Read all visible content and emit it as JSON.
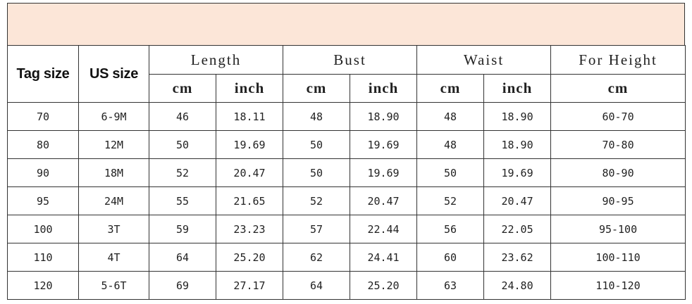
{
  "headers": {
    "tag_size": "Tag size",
    "us_size": "US size",
    "groups": [
      "Length",
      "Bust",
      "Waist",
      "For Height"
    ],
    "units": [
      "cm",
      "inch",
      "cm",
      "inch",
      "cm",
      "inch",
      "cm"
    ]
  },
  "colors": {
    "banner": "#fce6d8",
    "border": "#333333"
  },
  "rows": [
    [
      "70",
      "6-9M",
      "46",
      "18.11",
      "48",
      "18.90",
      "48",
      "18.90",
      "60-70"
    ],
    [
      "80",
      "12M",
      "50",
      "19.69",
      "50",
      "19.69",
      "48",
      "18.90",
      "70-80"
    ],
    [
      "90",
      "18M",
      "52",
      "20.47",
      "50",
      "19.69",
      "50",
      "19.69",
      "80-90"
    ],
    [
      "95",
      "24M",
      "55",
      "21.65",
      "52",
      "20.47",
      "52",
      "20.47",
      "90-95"
    ],
    [
      "100",
      "3T",
      "59",
      "23.23",
      "57",
      "22.44",
      "56",
      "22.05",
      "95-100"
    ],
    [
      "110",
      "4T",
      "64",
      "25.20",
      "62",
      "24.41",
      "60",
      "23.62",
      "100-110"
    ],
    [
      "120",
      "5-6T",
      "69",
      "27.17",
      "64",
      "25.20",
      "63",
      "24.80",
      "110-120"
    ]
  ]
}
